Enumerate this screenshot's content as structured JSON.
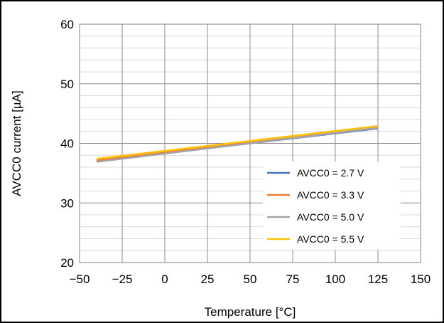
{
  "chart_data": {
    "type": "line",
    "xlabel": "Temperature [°C]",
    "ylabel": "AVCC0 current [µA]",
    "xlim": [
      -50,
      150
    ],
    "ylim": [
      20,
      60
    ],
    "x_ticks": [
      -50,
      -25,
      0,
      25,
      50,
      75,
      100,
      125,
      150
    ],
    "x_tick_labels": [
      "−50",
      "−25",
      "0",
      "25",
      "50",
      "75",
      "100",
      "125",
      "150"
    ],
    "y_ticks": [
      20,
      30,
      40,
      50,
      60
    ],
    "y_tick_labels": [
      "20",
      "30",
      "40",
      "50",
      "60"
    ],
    "y_minor_step": 2,
    "grid": true,
    "legend_position": "lower-right",
    "series": [
      {
        "name": "AVCC0 = 2.7 V",
        "color": "#4472C4",
        "x": [
          -40,
          125
        ],
        "y": [
          37.0,
          42.5
        ]
      },
      {
        "name": "AVCC0 = 3.3 V",
        "color": "#ED7D31",
        "x": [
          -40,
          125
        ],
        "y": [
          37.1,
          42.6
        ]
      },
      {
        "name": "AVCC0 = 5.0 V",
        "color": "#A5A5A5",
        "x": [
          -40,
          125
        ],
        "y": [
          36.9,
          42.6
        ]
      },
      {
        "name": "AVCC0 = 5.5 V",
        "color": "#FFC000",
        "x": [
          -40,
          125
        ],
        "y": [
          37.4,
          42.9
        ]
      }
    ]
  }
}
